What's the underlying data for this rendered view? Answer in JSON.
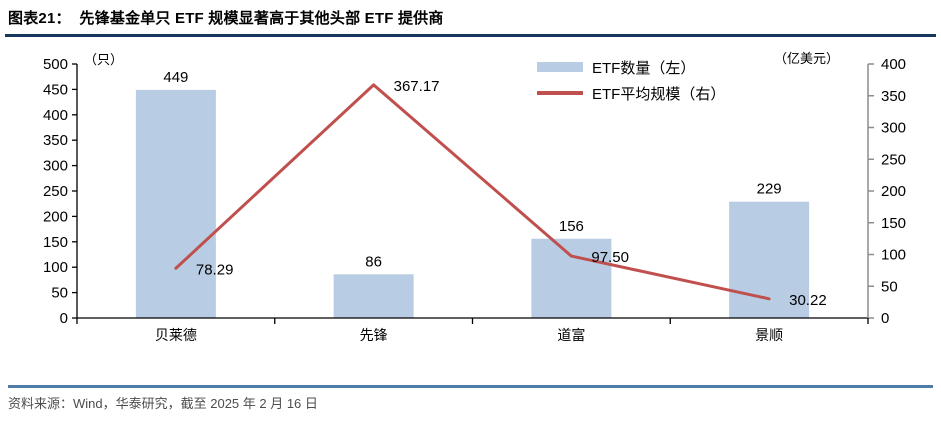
{
  "header": {
    "title": "图表21：  先锋基金单只 ETF 规模显著高于其他头部 ETF 提供商"
  },
  "footer": {
    "source": "资料来源：Wind，华泰研究，截至 2025 年 2 月 16 日"
  },
  "colors": {
    "bar_fill": "#B8CCE4",
    "line_stroke": "#C0504D",
    "title_rule": "#17375E",
    "footer_rule": "#4E7CA6",
    "axis_black": "#000000",
    "axis_gray": "#8C8C8C",
    "source_text": "#4D4D4D"
  },
  "chart_data": {
    "type": "bar",
    "subtype": "bar-and-line-combo",
    "categories": [
      "贝莱德",
      "先锋",
      "道富",
      "景顺"
    ],
    "series": [
      {
        "name": "ETF数量（左）",
        "type": "bar",
        "axis": "left",
        "color": "#B8CCE4",
        "values": [
          449,
          86,
          156,
          229
        ],
        "labels": [
          "449",
          "86",
          "156",
          "229"
        ]
      },
      {
        "name": "ETF平均规模（右）",
        "type": "line",
        "axis": "right",
        "color": "#C0504D",
        "values": [
          78.29,
          367.17,
          97.5,
          30.22
        ],
        "labels": [
          "78.29",
          "367.17",
          "97.50",
          "30.22"
        ]
      }
    ],
    "left_axis": {
      "unit_label": "（只）",
      "min": 0,
      "max": 500,
      "step": 50,
      "ticks": [
        0,
        50,
        100,
        150,
        200,
        250,
        300,
        350,
        400,
        450,
        500
      ]
    },
    "right_axis": {
      "unit_label": "（亿美元）",
      "min": 0,
      "max": 400,
      "step": 50,
      "ticks": [
        0,
        50,
        100,
        150,
        200,
        250,
        300,
        350,
        400
      ]
    },
    "grid": false,
    "legend_position": "inside-top-right"
  }
}
